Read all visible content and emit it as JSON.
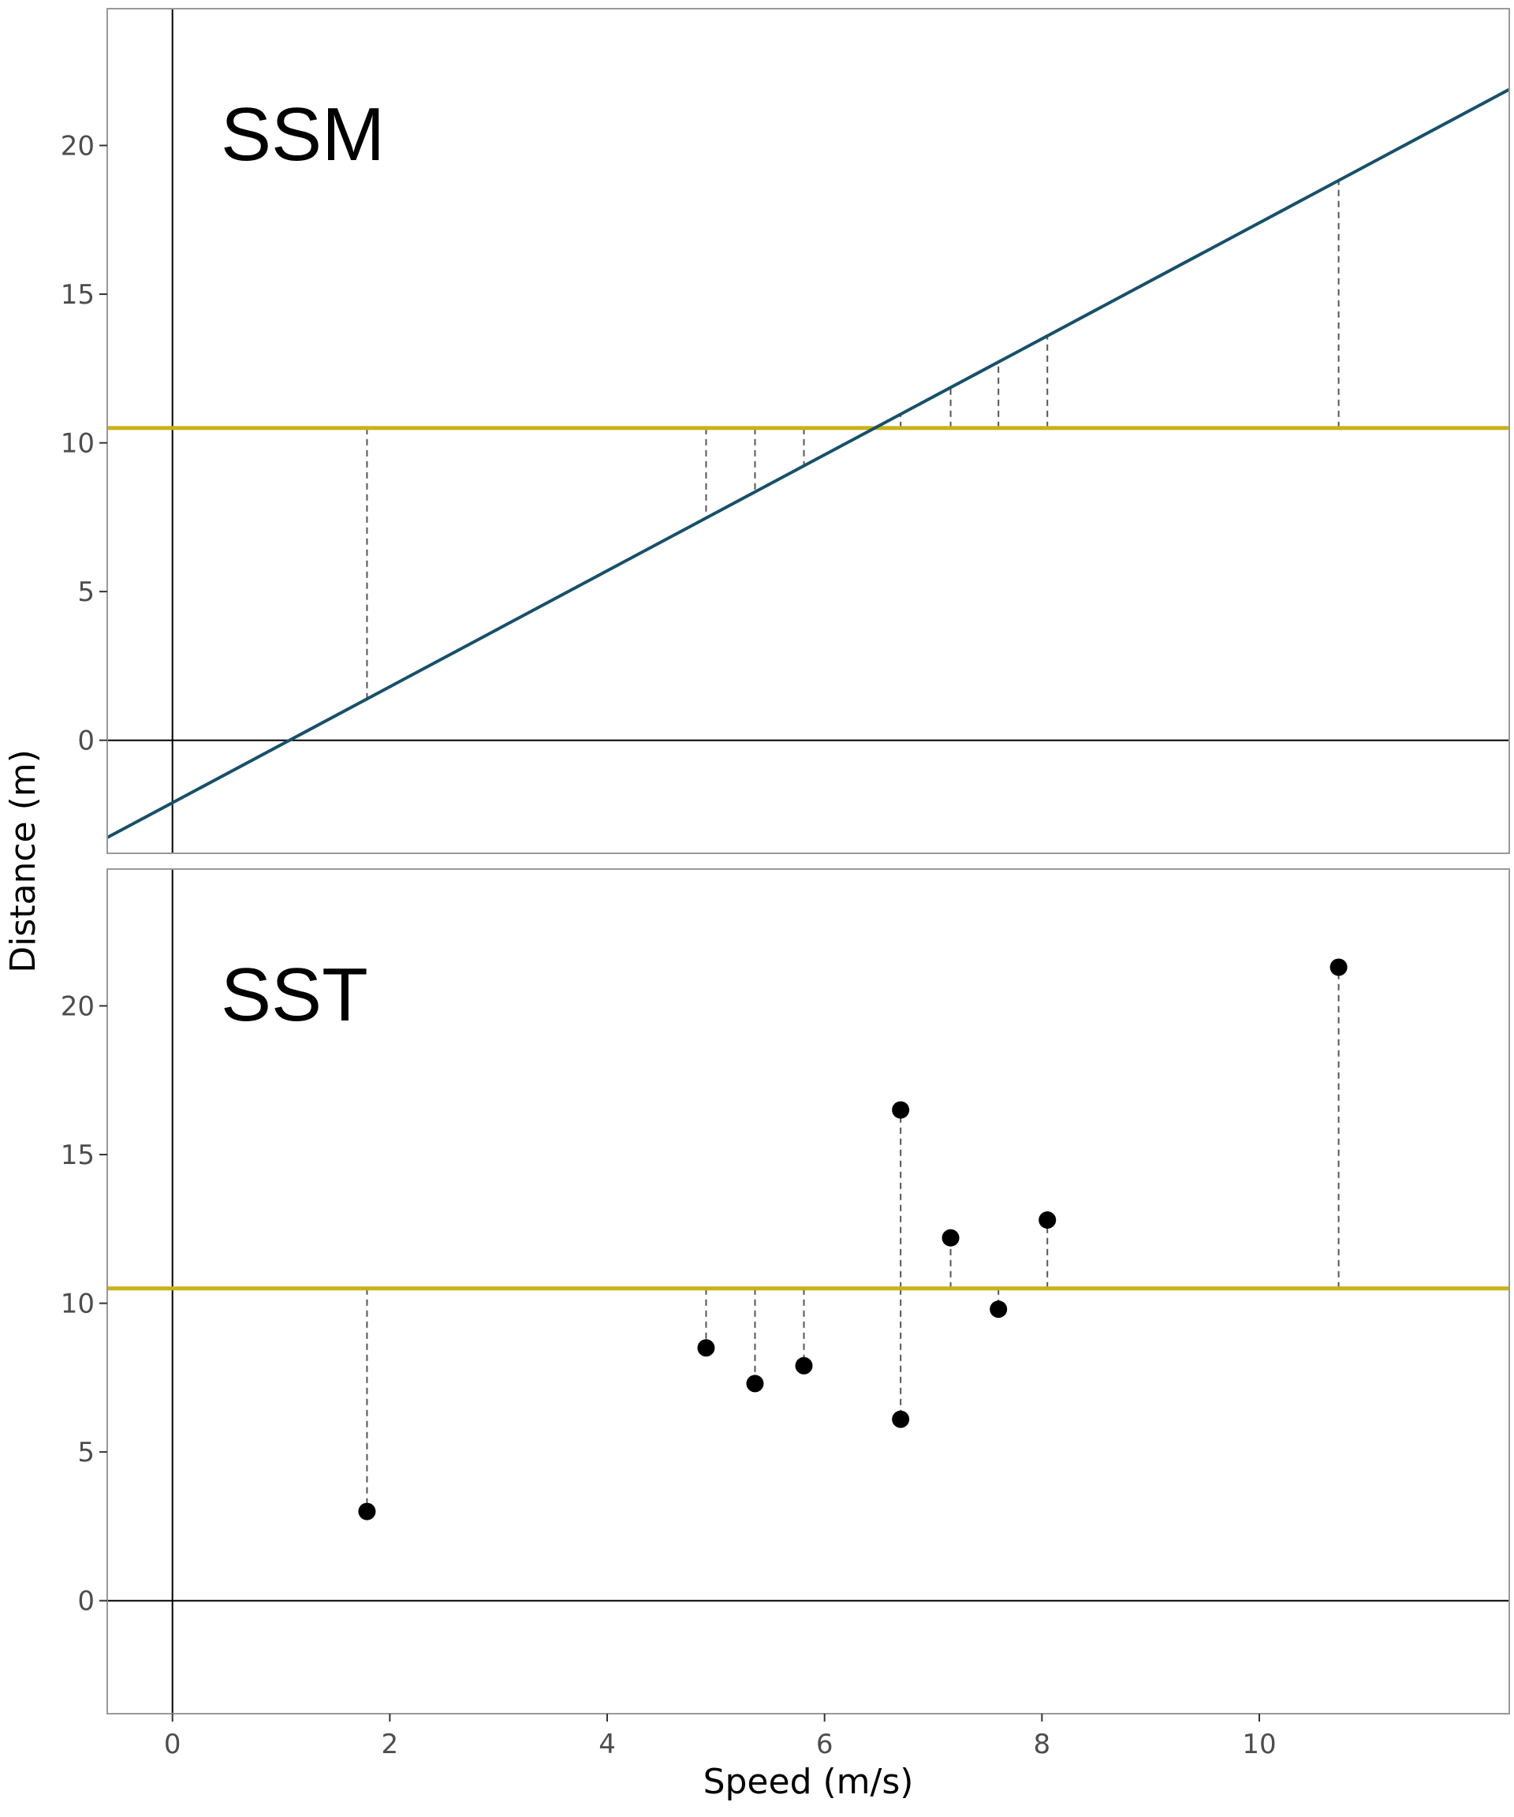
{
  "chart_data": {
    "type": "scatter",
    "xlabel": "Speed (m/s)",
    "ylabel": "Distance (m)",
    "xlim": [
      -0.6,
      12.3
    ],
    "ylim": [
      -3.8,
      24.6
    ],
    "x_ticks": [
      0,
      2,
      4,
      6,
      8,
      10
    ],
    "y_ticks": [
      0,
      5,
      10,
      15,
      20
    ],
    "grid": false,
    "legend": "none",
    "colors": {
      "threshold_line": "#C9B11A",
      "regression_line": "#17506A",
      "points": "#000000",
      "residuals": "#555555",
      "panel_border": "#999999"
    },
    "threshold_y": 10.5,
    "panels": [
      {
        "label": "SSM",
        "regression_line": {
          "intercept": -2.1,
          "slope": 1.95
        },
        "residual_x": [
          1.79,
          4.91,
          5.36,
          5.81,
          6.7,
          7.16,
          7.6,
          8.05,
          10.73
        ]
      },
      {
        "label": "SST",
        "points": [
          {
            "x": 1.79,
            "y": 3.0
          },
          {
            "x": 4.91,
            "y": 8.5
          },
          {
            "x": 5.36,
            "y": 7.3
          },
          {
            "x": 5.81,
            "y": 7.9
          },
          {
            "x": 6.7,
            "y": 16.5
          },
          {
            "x": 6.7,
            "y": 6.1
          },
          {
            "x": 7.16,
            "y": 12.2
          },
          {
            "x": 7.6,
            "y": 9.8
          },
          {
            "x": 8.05,
            "y": 12.8
          },
          {
            "x": 10.73,
            "y": 21.3
          }
        ]
      }
    ]
  }
}
